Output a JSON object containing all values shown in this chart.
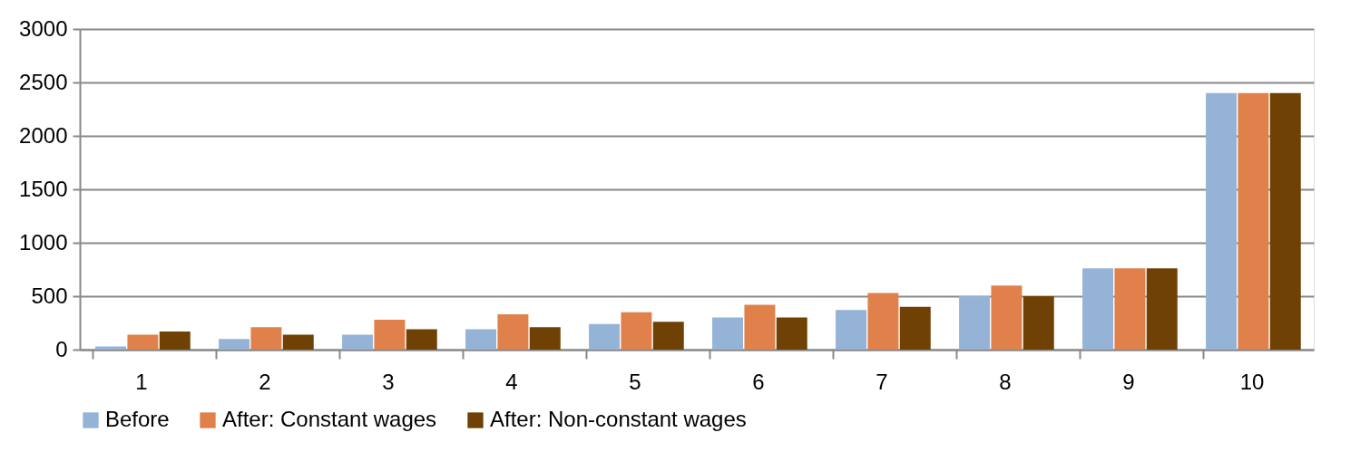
{
  "chart_data": {
    "type": "bar",
    "categories": [
      "1",
      "2",
      "3",
      "4",
      "5",
      "6",
      "7",
      "8",
      "9",
      "10"
    ],
    "series": [
      {
        "name": "Before",
        "color": "#95b3d7",
        "values": [
          30,
          100,
          140,
          190,
          240,
          300,
          370,
          500,
          760,
          2400
        ]
      },
      {
        "name": "After: Constant wages",
        "color": "#e0804a",
        "values": [
          140,
          210,
          280,
          330,
          350,
          420,
          530,
          600,
          760,
          2400
        ]
      },
      {
        "name": "After: Non-constant wages",
        "color": "#6f4104",
        "values": [
          170,
          140,
          190,
          210,
          260,
          300,
          400,
          500,
          760,
          2400
        ]
      }
    ],
    "ylim": [
      0,
      3000
    ],
    "yticks": [
      0,
      500,
      1000,
      1500,
      2000,
      2500,
      3000
    ],
    "grid": "y",
    "legend": "bottom"
  }
}
